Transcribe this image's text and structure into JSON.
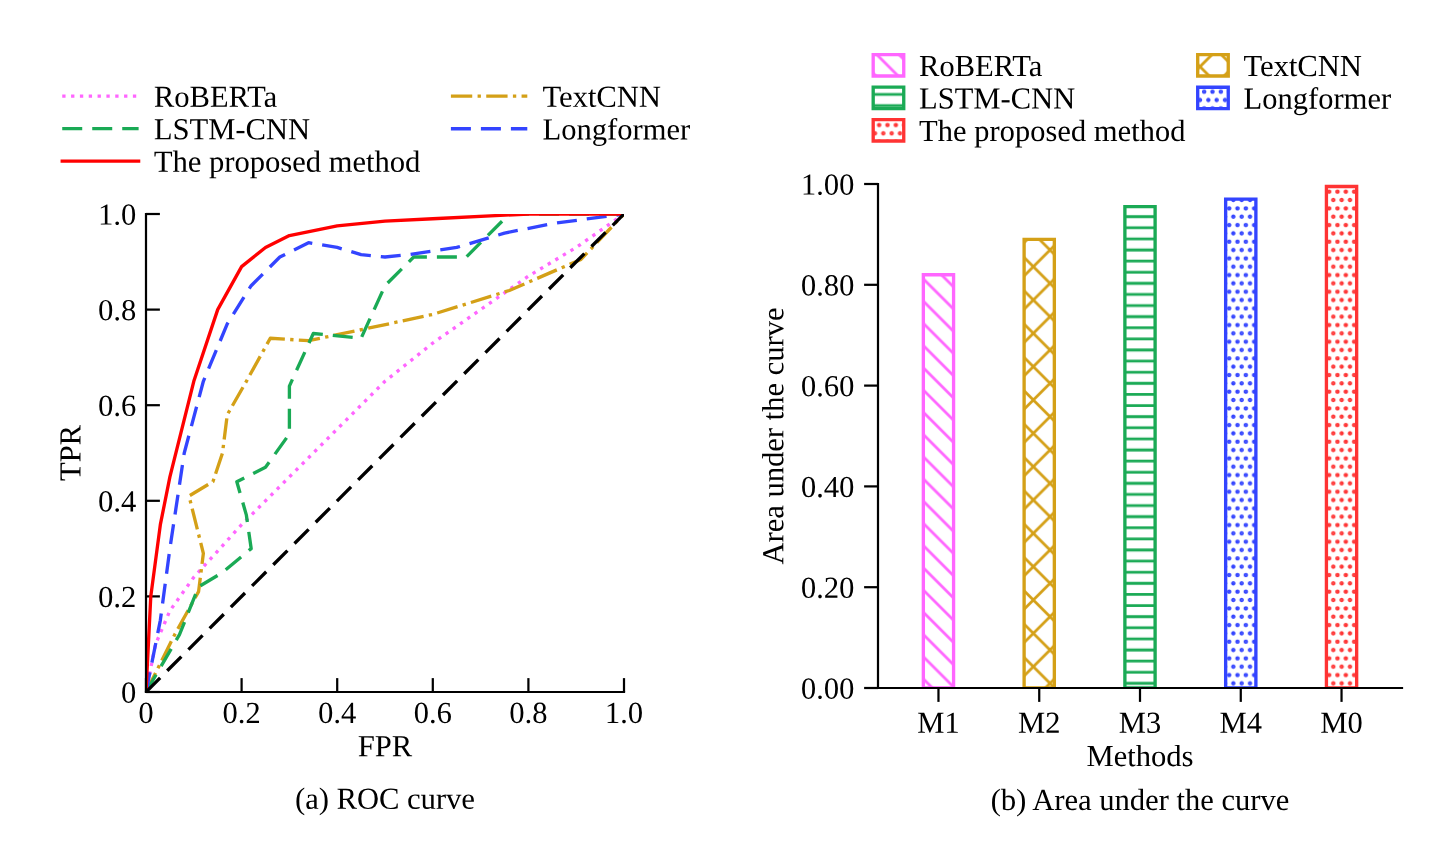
{
  "chart_data": [
    {
      "type": "line",
      "xlabel": "FPR",
      "ylabel": "TPR",
      "annotations": [
        "(a) ROC curve"
      ],
      "legend": "top",
      "grid": false,
      "xlim": [
        0,
        1
      ],
      "ylim": [
        0,
        1
      ],
      "xticks": [
        0,
        0.2,
        0.4,
        0.6,
        0.8,
        {
          "value": 1,
          "label": "1.0"
        }
      ],
      "yticks": [
        0,
        0.2,
        0.4,
        0.6,
        0.8,
        {
          "value": 1,
          "label": "1.0"
        }
      ],
      "series": [
        {
          "name": "RoBERTa",
          "color": "#ff66ff",
          "line_style": "dotted",
          "x": [
            0,
            0.02,
            0.05,
            0.1,
            0.2,
            0.3,
            0.4,
            0.5,
            0.6,
            0.7,
            0.8,
            0.9,
            1
          ],
          "values": [
            0,
            0.1,
            0.17,
            0.24,
            0.35,
            0.45,
            0.55,
            0.65,
            0.73,
            0.8,
            0.87,
            0.93,
            1
          ]
        },
        {
          "name": "TextCNN",
          "color": "#d4a017",
          "line_style": "dashdot",
          "x": [
            0,
            0.06,
            0.11,
            0.12,
            0.09,
            0.14,
            0.16,
            0.17,
            0.21,
            0.26,
            0.34,
            0.46,
            0.6,
            0.76,
            0.91,
            1
          ],
          "values": [
            0,
            0.12,
            0.21,
            0.29,
            0.41,
            0.44,
            0.5,
            0.58,
            0.65,
            0.74,
            0.735,
            0.76,
            0.79,
            0.84,
            0.905,
            1
          ]
        },
        {
          "name": "LSTM-CNN",
          "color": "#1aaa55",
          "line_style": "dashed",
          "x": [
            0,
            0.07,
            0.11,
            0.16,
            0.22,
            0.21,
            0.19,
            0.25,
            0.3,
            0.3,
            0.35,
            0.45,
            0.5,
            0.56,
            0.67,
            0.76,
            0.88,
            1
          ],
          "values": [
            0,
            0.12,
            0.22,
            0.25,
            0.3,
            0.37,
            0.44,
            0.47,
            0.54,
            0.64,
            0.75,
            0.74,
            0.85,
            0.91,
            0.91,
            1,
            1,
            1
          ]
        },
        {
          "name": "Longformer",
          "color": "#3344ff",
          "line_style": "dashed",
          "x": [
            0,
            0.03,
            0.05,
            0.08,
            0.12,
            0.17,
            0.22,
            0.28,
            0.34,
            0.4,
            0.45,
            0.5,
            0.55,
            0.65,
            0.75,
            0.85,
            1
          ],
          "values": [
            0,
            0.15,
            0.3,
            0.5,
            0.65,
            0.77,
            0.85,
            0.91,
            0.94,
            0.93,
            0.915,
            0.91,
            0.915,
            0.93,
            0.96,
            0.98,
            1
          ]
        },
        {
          "name": "The proposed method",
          "color": "#ff0000",
          "line_style": "solid",
          "x": [
            0,
            0.01,
            0.03,
            0.05,
            0.1,
            0.15,
            0.2,
            0.25,
            0.3,
            0.4,
            0.5,
            0.6,
            0.8,
            1
          ],
          "values": [
            0,
            0.2,
            0.35,
            0.45,
            0.65,
            0.8,
            0.89,
            0.93,
            0.955,
            0.975,
            0.985,
            0.99,
            1,
            1
          ]
        },
        {
          "color": "#000000",
          "line_style": "dashed",
          "x": [
            0,
            1
          ],
          "values": [
            0,
            1
          ]
        }
      ]
    },
    {
      "type": "bar",
      "xlabel": "Methods",
      "ylabel": "Area under the curve",
      "annotations": [
        "(b) Area under the curve"
      ],
      "legend": "top",
      "grid": false,
      "ylim": [
        0,
        1
      ],
      "yticks": [
        {
          "value": 0,
          "label": "0.00"
        },
        {
          "value": 0.2,
          "label": "0.20"
        },
        {
          "value": 0.4,
          "label": "0.40"
        },
        {
          "value": 0.6,
          "label": "0.60"
        },
        {
          "value": 0.8,
          "label": "0.80"
        },
        {
          "value": 1,
          "label": "1.00"
        }
      ],
      "categories": [
        "M1",
        "M2",
        "M3",
        "M4",
        "M0"
      ],
      "series": [
        {
          "name": "RoBERTa",
          "color": "#ff66ff",
          "values": [
            0.82,
            null,
            null,
            null,
            null
          ]
        },
        {
          "name": "TextCNN",
          "color": "#d4a017",
          "values": [
            null,
            0.89,
            null,
            null,
            null
          ]
        },
        {
          "name": "LSTM-CNN",
          "color": "#1aaa55",
          "values": [
            null,
            null,
            0.955,
            null,
            null
          ]
        },
        {
          "name": "Longformer",
          "color": "#3344ff",
          "values": [
            null,
            null,
            null,
            0.97,
            null
          ]
        },
        {
          "name": "The proposed method",
          "color": "#ff3333",
          "values": [
            null,
            null,
            null,
            null,
            0.995
          ]
        }
      ]
    }
  ]
}
